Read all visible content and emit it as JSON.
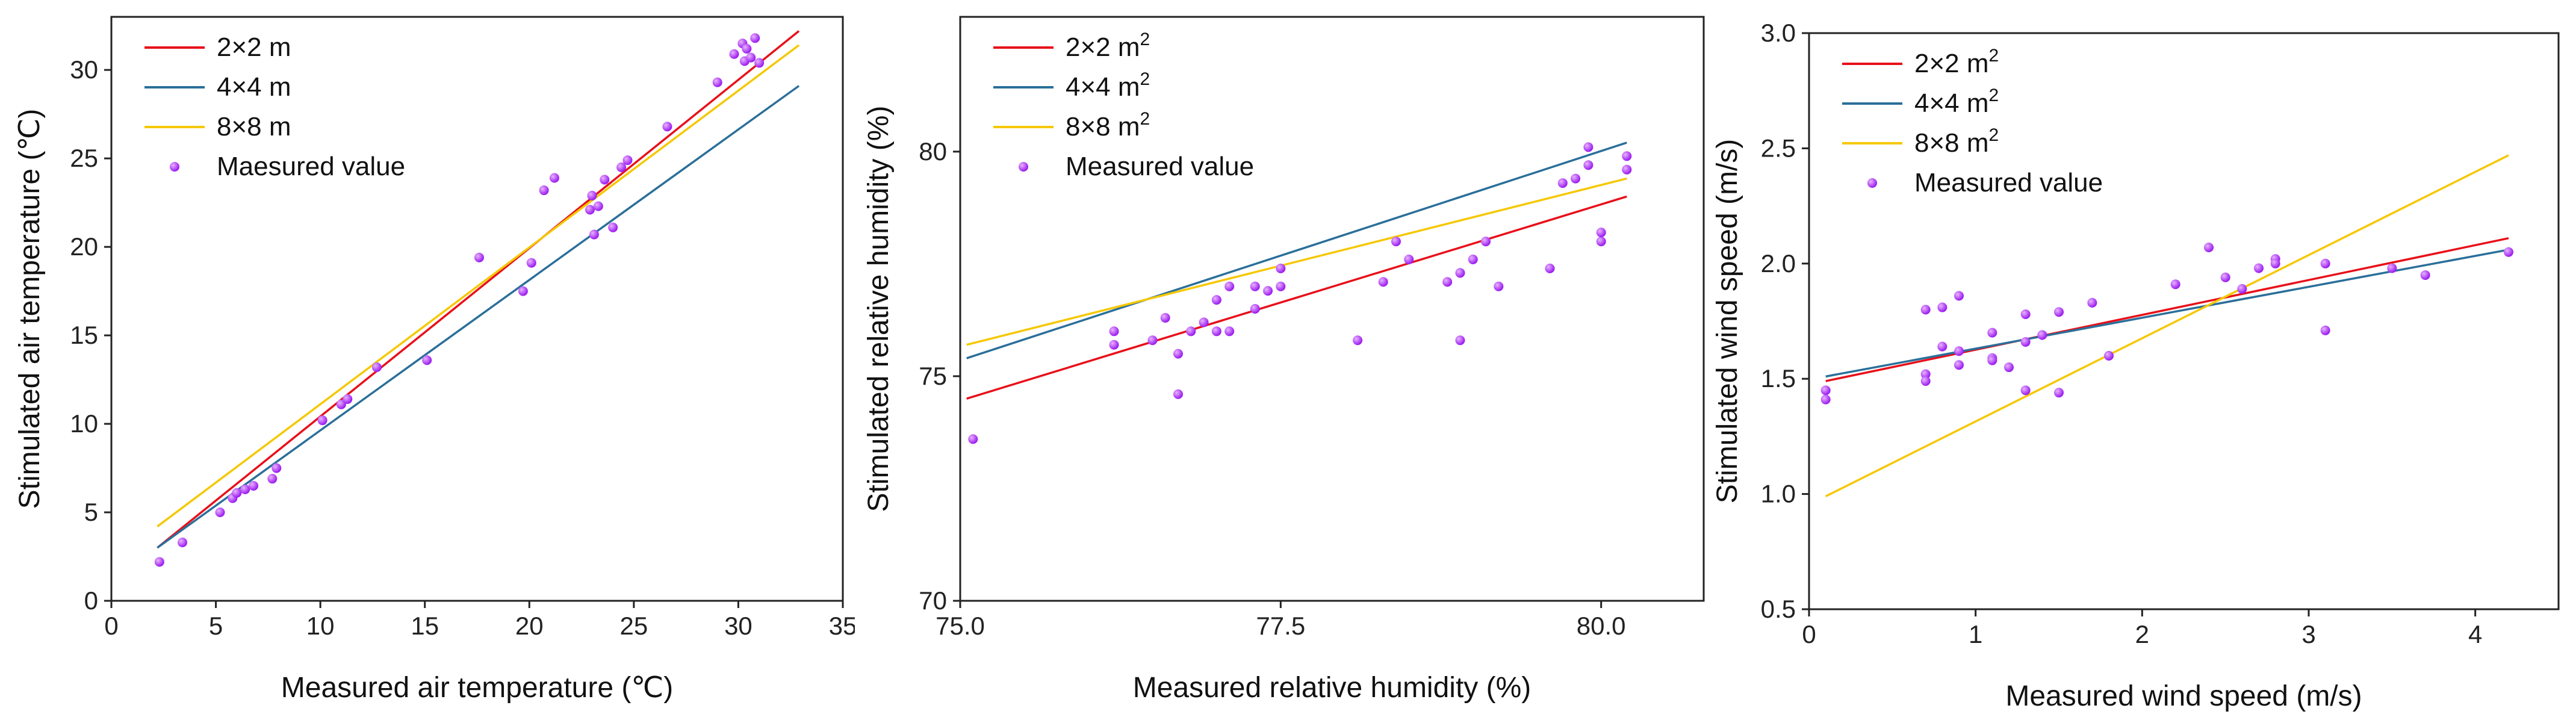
{
  "colors": {
    "red": "#e8101a",
    "blue": "#2a6f9a",
    "yellow": "#f5c800",
    "point": "#9b1bf0",
    "point_highlight": "#e9b3ff"
  },
  "chart_data": [
    {
      "type": "scatter",
      "xlabel": "Measured air temperature (℃)",
      "ylabel": "Stimulated air temperature (℃)",
      "xlim": [
        0,
        35
      ],
      "ylim": [
        0,
        33
      ],
      "xticks": [
        0,
        5,
        10,
        15,
        20,
        25,
        30,
        35
      ],
      "xtick_labels": [
        "0",
        "5",
        "10",
        "15",
        "20",
        "25",
        "30",
        "35"
      ],
      "yticks": [
        0,
        5,
        10,
        15,
        20,
        25,
        30
      ],
      "ytick_labels": [
        "0",
        "5",
        "10",
        "15",
        "20",
        "25",
        "30"
      ],
      "legend_position": "top-left",
      "lines": [
        {
          "name": "2×2 m",
          "sup": "",
          "color": "#e8101a",
          "x": [
            2.2,
            32.9
          ],
          "y": [
            3.0,
            32.2
          ]
        },
        {
          "name": "4×4 m",
          "sup": "",
          "color": "#2a6f9a",
          "x": [
            2.2,
            32.9
          ],
          "y": [
            3.0,
            29.1
          ]
        },
        {
          "name": "8×8 m",
          "sup": "",
          "color": "#f5c800",
          "x": [
            2.2,
            32.9
          ],
          "y": [
            4.2,
            31.4
          ]
        }
      ],
      "points_label": "Maesured value",
      "points": [
        [
          2.3,
          2.2
        ],
        [
          3.4,
          3.3
        ],
        [
          5.2,
          5.0
        ],
        [
          5.8,
          5.8
        ],
        [
          6.0,
          6.1
        ],
        [
          6.4,
          6.3
        ],
        [
          6.8,
          6.5
        ],
        [
          7.7,
          6.9
        ],
        [
          7.9,
          7.5
        ],
        [
          10.1,
          10.2
        ],
        [
          11.0,
          11.1
        ],
        [
          11.3,
          11.4
        ],
        [
          12.7,
          13.2
        ],
        [
          15.1,
          13.6
        ],
        [
          17.6,
          19.4
        ],
        [
          19.7,
          17.5
        ],
        [
          20.1,
          19.1
        ],
        [
          20.7,
          23.2
        ],
        [
          21.2,
          23.9
        ],
        [
          22.9,
          22.1
        ],
        [
          23.0,
          22.9
        ],
        [
          23.1,
          20.7
        ],
        [
          23.3,
          22.3
        ],
        [
          23.6,
          23.8
        ],
        [
          24.0,
          21.1
        ],
        [
          24.4,
          24.5
        ],
        [
          24.7,
          24.9
        ],
        [
          26.6,
          26.8
        ],
        [
          29.0,
          29.3
        ],
        [
          29.8,
          30.9
        ],
        [
          30.2,
          31.5
        ],
        [
          30.3,
          30.5
        ],
        [
          30.4,
          31.2
        ],
        [
          30.6,
          30.7
        ],
        [
          30.8,
          31.8
        ],
        [
          31.0,
          30.4
        ]
      ]
    },
    {
      "type": "scatter",
      "xlabel": "Measured relative humidity (%)",
      "ylabel": "Stimulated relative humidity (%)",
      "xlim": [
        75.0,
        80.8
      ],
      "ylim": [
        70.0,
        83.0
      ],
      "xticks": [
        75.0,
        77.5,
        80.0
      ],
      "xtick_labels": [
        "75.0",
        "77.5",
        "80.0"
      ],
      "yticks": [
        70,
        75,
        80
      ],
      "ytick_labels": [
        "70",
        "75",
        "80"
      ],
      "legend_position": "top-left",
      "lines": [
        {
          "name": "2×2 m",
          "sup": "2",
          "color": "#e8101a",
          "x": [
            75.05,
            80.2
          ],
          "y": [
            74.5,
            79.0
          ]
        },
        {
          "name": "4×4 m",
          "sup": "2",
          "color": "#2a6f9a",
          "x": [
            75.05,
            80.2
          ],
          "y": [
            75.4,
            80.2
          ]
        },
        {
          "name": "8×8 m",
          "sup": "2",
          "color": "#f5c800",
          "x": [
            75.05,
            80.2
          ],
          "y": [
            75.7,
            79.4
          ]
        }
      ],
      "points_label": "Measured value",
      "points": [
        [
          75.1,
          73.6
        ],
        [
          76.2,
          76.0
        ],
        [
          76.2,
          75.7
        ],
        [
          76.5,
          75.8
        ],
        [
          76.6,
          76.3
        ],
        [
          76.7,
          74.6
        ],
        [
          76.7,
          75.5
        ],
        [
          76.8,
          76.0
        ],
        [
          76.9,
          76.2
        ],
        [
          77.0,
          76.0
        ],
        [
          77.0,
          76.7
        ],
        [
          77.1,
          76.0
        ],
        [
          77.1,
          77.0
        ],
        [
          77.3,
          76.5
        ],
        [
          77.3,
          77.0
        ],
        [
          77.4,
          76.9
        ],
        [
          77.5,
          77.0
        ],
        [
          77.5,
          77.4
        ],
        [
          78.1,
          75.8
        ],
        [
          78.3,
          77.1
        ],
        [
          78.4,
          78.0
        ],
        [
          78.5,
          77.6
        ],
        [
          78.8,
          77.1
        ],
        [
          78.9,
          75.8
        ],
        [
          78.9,
          77.3
        ],
        [
          79.0,
          77.6
        ],
        [
          79.1,
          78.0
        ],
        [
          79.2,
          77.0
        ],
        [
          79.6,
          77.4
        ],
        [
          79.7,
          79.3
        ],
        [
          79.8,
          79.4
        ],
        [
          79.9,
          79.7
        ],
        [
          80.0,
          78.0
        ],
        [
          80.0,
          78.2
        ],
        [
          80.2,
          79.9
        ],
        [
          80.2,
          79.6
        ],
        [
          79.9,
          80.1
        ]
      ]
    },
    {
      "type": "scatter",
      "xlabel": "Measured wind speed (m/s)",
      "ylabel": "Stimulated wind speed (m/s)",
      "xlim": [
        0,
        4.5
      ],
      "ylim": [
        0.5,
        3.0
      ],
      "xticks": [
        0,
        1,
        2,
        3,
        4
      ],
      "xtick_labels": [
        "0",
        "1",
        "2",
        "3",
        "4"
      ],
      "yticks": [
        0.5,
        1.0,
        1.5,
        2.0,
        2.5,
        3.0
      ],
      "ytick_labels": [
        "0.5",
        "1.0",
        "1.5",
        "2.0",
        "2.5",
        "3.0"
      ],
      "legend_position": "top-left",
      "lines": [
        {
          "name": "2×2 m",
          "sup": "2",
          "color": "#e8101a",
          "x": [
            0.1,
            4.2
          ],
          "y": [
            1.49,
            2.11
          ]
        },
        {
          "name": "4×4 m",
          "sup": "2",
          "color": "#2a6f9a",
          "x": [
            0.1,
            4.2
          ],
          "y": [
            1.51,
            2.06
          ]
        },
        {
          "name": "8×8 m",
          "sup": "2",
          "color": "#f5c800",
          "x": [
            0.1,
            4.2
          ],
          "y": [
            0.99,
            2.47
          ]
        }
      ],
      "points_label": "Measured value",
      "points": [
        [
          0.1,
          1.45
        ],
        [
          0.1,
          1.41
        ],
        [
          0.7,
          1.8
        ],
        [
          0.7,
          1.52
        ],
        [
          0.7,
          1.49
        ],
        [
          0.8,
          1.81
        ],
        [
          0.8,
          1.64
        ],
        [
          0.9,
          1.86
        ],
        [
          0.9,
          1.62
        ],
        [
          0.9,
          1.56
        ],
        [
          1.1,
          1.7
        ],
        [
          1.1,
          1.59
        ],
        [
          1.1,
          1.58
        ],
        [
          1.2,
          1.55
        ],
        [
          1.3,
          1.78
        ],
        [
          1.3,
          1.66
        ],
        [
          1.3,
          1.45
        ],
        [
          1.4,
          1.69
        ],
        [
          1.5,
          1.79
        ],
        [
          1.5,
          1.44
        ],
        [
          1.7,
          1.83
        ],
        [
          1.8,
          1.6
        ],
        [
          2.2,
          1.91
        ],
        [
          2.4,
          2.07
        ],
        [
          2.5,
          1.94
        ],
        [
          2.6,
          1.89
        ],
        [
          2.7,
          1.98
        ],
        [
          2.8,
          2.02
        ],
        [
          2.8,
          2.0
        ],
        [
          3.1,
          2.0
        ],
        [
          3.1,
          1.71
        ],
        [
          3.5,
          1.98
        ],
        [
          3.7,
          1.95
        ],
        [
          4.2,
          2.05
        ]
      ]
    }
  ]
}
